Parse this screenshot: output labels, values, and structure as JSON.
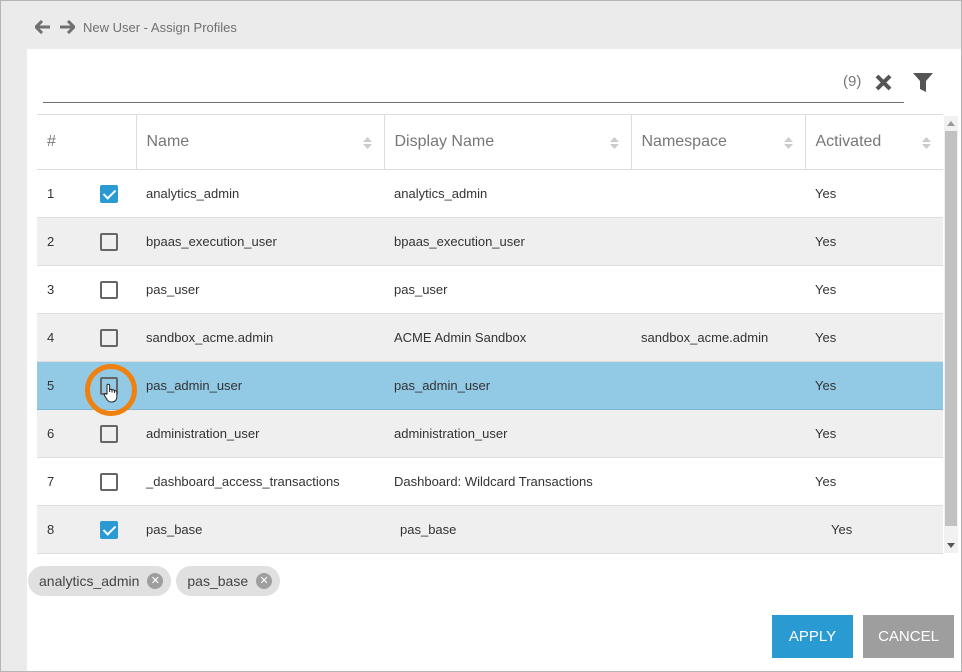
{
  "header": {
    "title": "New User - Assign Profiles"
  },
  "search": {
    "value": "",
    "count": "(9)"
  },
  "table": {
    "columns": [
      "#",
      "Name",
      "Display Name",
      "Namespace",
      "Activated"
    ],
    "rows": [
      {
        "num": "1",
        "checked": true,
        "name": "analytics_admin",
        "display": "analytics_admin",
        "namespace": "",
        "activated": "Yes"
      },
      {
        "num": "2",
        "checked": false,
        "name": "bpaas_execution_user",
        "display": "bpaas_execution_user",
        "namespace": "",
        "activated": "Yes"
      },
      {
        "num": "3",
        "checked": false,
        "name": "pas_user",
        "display": "pas_user",
        "namespace": "",
        "activated": "Yes"
      },
      {
        "num": "4",
        "checked": false,
        "name": "sandbox_acme.admin",
        "display": "ACME Admin Sandbox",
        "namespace": "sandbox_acme.admin",
        "activated": "Yes"
      },
      {
        "num": "5",
        "checked": false,
        "name": "pas_admin_user",
        "display": "pas_admin_user",
        "namespace": "",
        "activated": "Yes",
        "highlighted": true
      },
      {
        "num": "6",
        "checked": false,
        "name": "administration_user",
        "display": "administration_user",
        "namespace": "",
        "activated": "Yes"
      },
      {
        "num": "7",
        "checked": false,
        "name": "_dashboard_access_transactions",
        "display": "Dashboard: Wildcard Transactions",
        "namespace": "",
        "activated": "Yes"
      },
      {
        "num": "8",
        "checked": true,
        "name": "pas_base",
        "display": "pas_base",
        "namespace": "",
        "activated": "Yes"
      }
    ]
  },
  "chips": [
    "analytics_admin",
    "pas_base"
  ],
  "buttons": {
    "apply": "APPLY",
    "cancel": "CANCEL"
  },
  "colors": {
    "accent": "#2a9ad3",
    "highlight_row": "#92c9e5",
    "annotation_ring": "#f0810f"
  }
}
